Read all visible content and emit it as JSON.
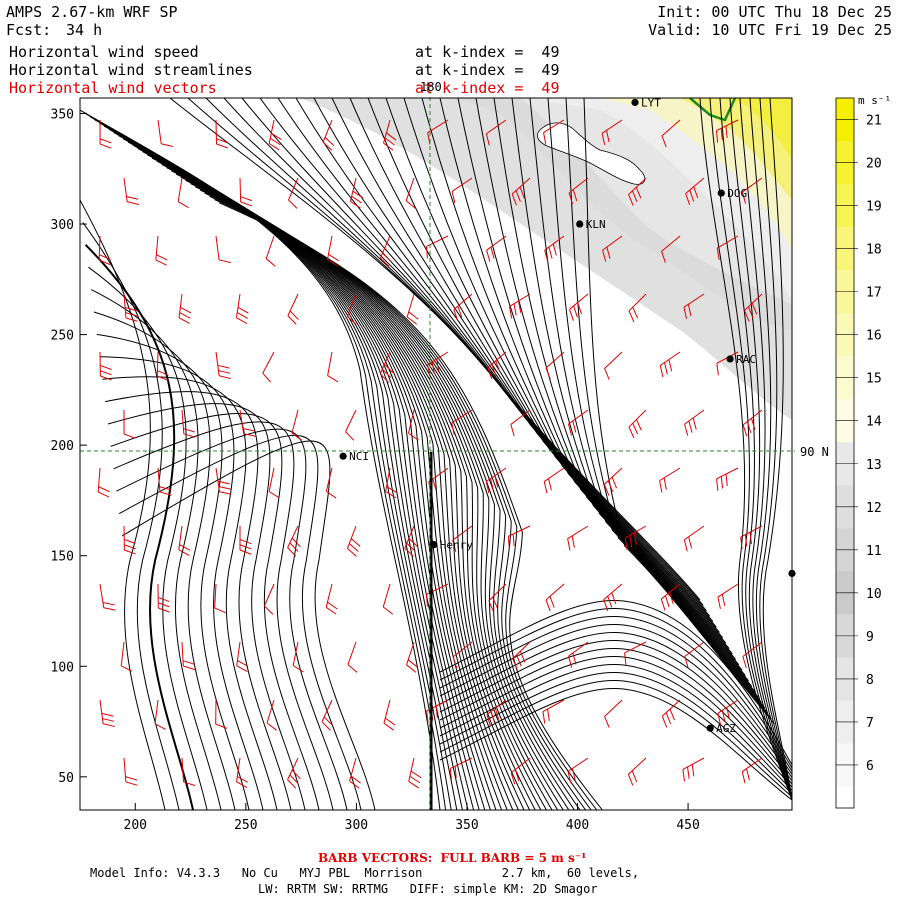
{
  "header": {
    "model": "AMPS 2.67-km WRF SP",
    "forecast_label": "Fcst:",
    "forecast_hours": "34 h",
    "init": "Init: 00 UTC Thu 18 Dec 25",
    "valid": "Valid: 10 UTC Fri 19 Dec 25",
    "fields": [
      {
        "name": "Horizontal wind speed",
        "level": "at k-index =  49"
      },
      {
        "name": "Horizontal wind streamlines",
        "level": "at k-index =  49"
      },
      {
        "name": "Horizontal wind vectors",
        "level": "at k-index =  49"
      }
    ]
  },
  "colorbar": {
    "unit": "m s⁻¹",
    "levels": [
      "21",
      "20",
      "19",
      "18",
      "17",
      "16",
      "15",
      "14",
      "13",
      "12",
      "11",
      "10",
      "9",
      "8",
      "7",
      "6"
    ],
    "colors": [
      "#f5f000",
      "#f6f230",
      "#f7f456",
      "#f8f57a",
      "#f9f79a",
      "#fbf9b6",
      "#fcfbcf",
      "#fdfde5",
      "#e8e8e8",
      "#dedede",
      "#d4d4d4",
      "#cacaca",
      "#d8d8d8",
      "#e4e4e4",
      "#eeeeee",
      "#f8f8f8"
    ]
  },
  "axes": {
    "x_ticks": [
      "200",
      "250",
      "300",
      "350",
      "400",
      "450"
    ],
    "y_ticks": [
      "350",
      "300",
      "250",
      "200",
      "150",
      "100",
      "50"
    ],
    "meridian_label": "180",
    "parallel_label": "90 N"
  },
  "stations": [
    {
      "name": "LYT",
      "x": 426,
      "y": 355
    },
    {
      "name": "DOG",
      "x": 465,
      "y": 314
    },
    {
      "name": "KLN",
      "x": 401,
      "y": 300
    },
    {
      "name": "RAC",
      "x": 469,
      "y": 239
    },
    {
      "name": "NCI",
      "x": 294,
      "y": 195
    },
    {
      "name": "Henry",
      "x": 335,
      "y": 155
    },
    {
      "name": "",
      "x": 497,
      "y": 142
    },
    {
      "name": "AGZ",
      "x": 460,
      "y": 72
    }
  ],
  "footer": {
    "barb_note": "BARB VECTORS:  FULL BARB = 5 m s⁻¹",
    "model_info": "Model Info: V4.3.3   No Cu   MYJ PBL  Morrison           2.7 km,  60 levels,",
    "physics": "LW: RRTM SW: RRTMG   DIFF: simple KM: 2D Smagor"
  }
}
